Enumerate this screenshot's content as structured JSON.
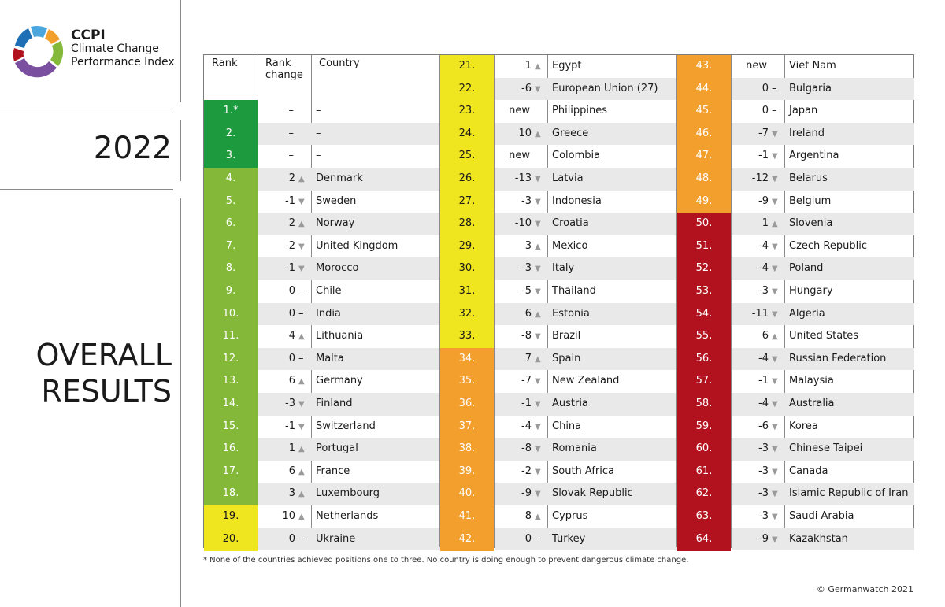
{
  "brand": {
    "acronym": "CCPI",
    "line1": "Climate Change",
    "line2": "Performance Index"
  },
  "year": "2022",
  "section_title": {
    "line1": "OVERALL",
    "line2": "RESULTS"
  },
  "table_headers": {
    "rank": "Rank",
    "rank_change_line1": "Rank",
    "rank_change_line2": "change",
    "country": "Country"
  },
  "colors": {
    "dark_green": "#1e9a3e",
    "green": "#84b839",
    "yellow": "#f0e61f",
    "orange": "#f39f2e",
    "red": "#b2121e",
    "stripe": "#e9e9e9"
  },
  "rows": [
    {
      "rank": "1.*",
      "change": "–",
      "dir": "",
      "country": "–",
      "band": "dark_green"
    },
    {
      "rank": "2.",
      "change": "–",
      "dir": "",
      "country": "–",
      "band": "dark_green"
    },
    {
      "rank": "3.",
      "change": "–",
      "dir": "",
      "country": "–",
      "band": "dark_green"
    },
    {
      "rank": "4.",
      "change": "2",
      "dir": "up",
      "country": "Denmark",
      "band": "green"
    },
    {
      "rank": "5.",
      "change": "-1",
      "dir": "down",
      "country": "Sweden",
      "band": "green"
    },
    {
      "rank": "6.",
      "change": "2",
      "dir": "up",
      "country": "Norway",
      "band": "green"
    },
    {
      "rank": "7.",
      "change": "-2",
      "dir": "down",
      "country": "United Kingdom",
      "band": "green"
    },
    {
      "rank": "8.",
      "change": "-1",
      "dir": "down",
      "country": "Morocco",
      "band": "green"
    },
    {
      "rank": "9.",
      "change": "0",
      "dir": "same",
      "country": "Chile",
      "band": "green"
    },
    {
      "rank": "10.",
      "change": "0",
      "dir": "same",
      "country": "India",
      "band": "green"
    },
    {
      "rank": "11.",
      "change": "4",
      "dir": "up",
      "country": "Lithuania",
      "band": "green"
    },
    {
      "rank": "12.",
      "change": "0",
      "dir": "same",
      "country": "Malta",
      "band": "green"
    },
    {
      "rank": "13.",
      "change": "6",
      "dir": "up",
      "country": "Germany",
      "band": "green"
    },
    {
      "rank": "14.",
      "change": "-3",
      "dir": "down",
      "country": "Finland",
      "band": "green"
    },
    {
      "rank": "15.",
      "change": "-1",
      "dir": "down",
      "country": "Switzerland",
      "band": "green"
    },
    {
      "rank": "16.",
      "change": "1",
      "dir": "up",
      "country": "Portugal",
      "band": "green"
    },
    {
      "rank": "17.",
      "change": "6",
      "dir": "up",
      "country": "France",
      "band": "green"
    },
    {
      "rank": "18.",
      "change": "3",
      "dir": "up",
      "country": "Luxembourg",
      "band": "green"
    },
    {
      "rank": "19.",
      "change": "10",
      "dir": "up",
      "country": "Netherlands",
      "band": "yellow"
    },
    {
      "rank": "20.",
      "change": "0",
      "dir": "same",
      "country": "Ukraine",
      "band": "yellow"
    },
    {
      "rank": "21.",
      "change": "1",
      "dir": "up",
      "country": "Egypt",
      "band": "yellow"
    },
    {
      "rank": "22.",
      "change": "-6",
      "dir": "down",
      "country": "European Union (27)",
      "band": "yellow"
    },
    {
      "rank": "23.",
      "change": "new",
      "dir": "",
      "country": "Philippines",
      "band": "yellow"
    },
    {
      "rank": "24.",
      "change": "10",
      "dir": "up",
      "country": "Greece",
      "band": "yellow"
    },
    {
      "rank": "25.",
      "change": "new",
      "dir": "",
      "country": "Colombia",
      "band": "yellow"
    },
    {
      "rank": "26.",
      "change": "-13",
      "dir": "down",
      "country": "Latvia",
      "band": "yellow"
    },
    {
      "rank": "27.",
      "change": "-3",
      "dir": "down",
      "country": "Indonesia",
      "band": "yellow"
    },
    {
      "rank": "28.",
      "change": "-10",
      "dir": "down",
      "country": "Croatia",
      "band": "yellow"
    },
    {
      "rank": "29.",
      "change": "3",
      "dir": "up",
      "country": "Mexico",
      "band": "yellow"
    },
    {
      "rank": "30.",
      "change": "-3",
      "dir": "down",
      "country": "Italy",
      "band": "yellow"
    },
    {
      "rank": "31.",
      "change": "-5",
      "dir": "down",
      "country": "Thailand",
      "band": "yellow"
    },
    {
      "rank": "32.",
      "change": "6",
      "dir": "up",
      "country": "Estonia",
      "band": "yellow"
    },
    {
      "rank": "33.",
      "change": "-8",
      "dir": "down",
      "country": "Brazil",
      "band": "yellow"
    },
    {
      "rank": "34.",
      "change": "7",
      "dir": "up",
      "country": "Spain",
      "band": "orange"
    },
    {
      "rank": "35.",
      "change": "-7",
      "dir": "down",
      "country": "New Zealand",
      "band": "orange"
    },
    {
      "rank": "36.",
      "change": "-1",
      "dir": "down",
      "country": "Austria",
      "band": "orange"
    },
    {
      "rank": "37.",
      "change": "-4",
      "dir": "down",
      "country": "China",
      "band": "orange"
    },
    {
      "rank": "38.",
      "change": "-8",
      "dir": "down",
      "country": "Romania",
      "band": "orange"
    },
    {
      "rank": "39.",
      "change": "-2",
      "dir": "down",
      "country": "South Africa",
      "band": "orange"
    },
    {
      "rank": "40.",
      "change": "-9",
      "dir": "down",
      "country": "Slovak Republic",
      "band": "orange"
    },
    {
      "rank": "41.",
      "change": "8",
      "dir": "up",
      "country": "Cyprus",
      "band": "orange"
    },
    {
      "rank": "42.",
      "change": "0",
      "dir": "same",
      "country": "Turkey",
      "band": "orange"
    },
    {
      "rank": "43.",
      "change": "new",
      "dir": "",
      "country": "Viet Nam",
      "band": "orange"
    },
    {
      "rank": "44.",
      "change": "0",
      "dir": "same",
      "country": "Bulgaria",
      "band": "orange"
    },
    {
      "rank": "45.",
      "change": "0",
      "dir": "same",
      "country": "Japan",
      "band": "orange"
    },
    {
      "rank": "46.",
      "change": "-7",
      "dir": "down",
      "country": "Ireland",
      "band": "orange"
    },
    {
      "rank": "47.",
      "change": "-1",
      "dir": "down",
      "country": "Argentina",
      "band": "orange"
    },
    {
      "rank": "48.",
      "change": "-12",
      "dir": "down",
      "country": "Belarus",
      "band": "orange"
    },
    {
      "rank": "49.",
      "change": "-9",
      "dir": "down",
      "country": "Belgium",
      "band": "orange"
    },
    {
      "rank": "50.",
      "change": "1",
      "dir": "up",
      "country": "Slovenia",
      "band": "red"
    },
    {
      "rank": "51.",
      "change": "-4",
      "dir": "down",
      "country": "Czech Republic",
      "band": "red"
    },
    {
      "rank": "52.",
      "change": "-4",
      "dir": "down",
      "country": "Poland",
      "band": "red"
    },
    {
      "rank": "53.",
      "change": "-3",
      "dir": "down",
      "country": "Hungary",
      "band": "red"
    },
    {
      "rank": "54.",
      "change": "-11",
      "dir": "down",
      "country": "Algeria",
      "band": "red"
    },
    {
      "rank": "55.",
      "change": "6",
      "dir": "up",
      "country": "United States",
      "band": "red"
    },
    {
      "rank": "56.",
      "change": "-4",
      "dir": "down",
      "country": "Russian Federation",
      "band": "red"
    },
    {
      "rank": "57.",
      "change": "-1",
      "dir": "down",
      "country": "Malaysia",
      "band": "red"
    },
    {
      "rank": "58.",
      "change": "-4",
      "dir": "down",
      "country": "Australia",
      "band": "red"
    },
    {
      "rank": "59.",
      "change": "-6",
      "dir": "down",
      "country": "Korea",
      "band": "red"
    },
    {
      "rank": "60.",
      "change": "-3",
      "dir": "down",
      "country": "Chinese Taipei",
      "band": "red"
    },
    {
      "rank": "61.",
      "change": "-3",
      "dir": "down",
      "country": "Canada",
      "band": "red"
    },
    {
      "rank": "62.",
      "change": "-3",
      "dir": "down",
      "country": "Islamic Republic of Iran",
      "band": "red"
    },
    {
      "rank": "63.",
      "change": "-3",
      "dir": "down",
      "country": "Saudi Arabia",
      "band": "red"
    },
    {
      "rank": "64.",
      "change": "-9",
      "dir": "down",
      "country": "Kazakhstan",
      "band": "red"
    }
  ],
  "footnote": "* None of the countries achieved positions one to three. No country is doing enough to prevent dangerous climate change.",
  "copyright": "© Germanwatch 2021"
}
